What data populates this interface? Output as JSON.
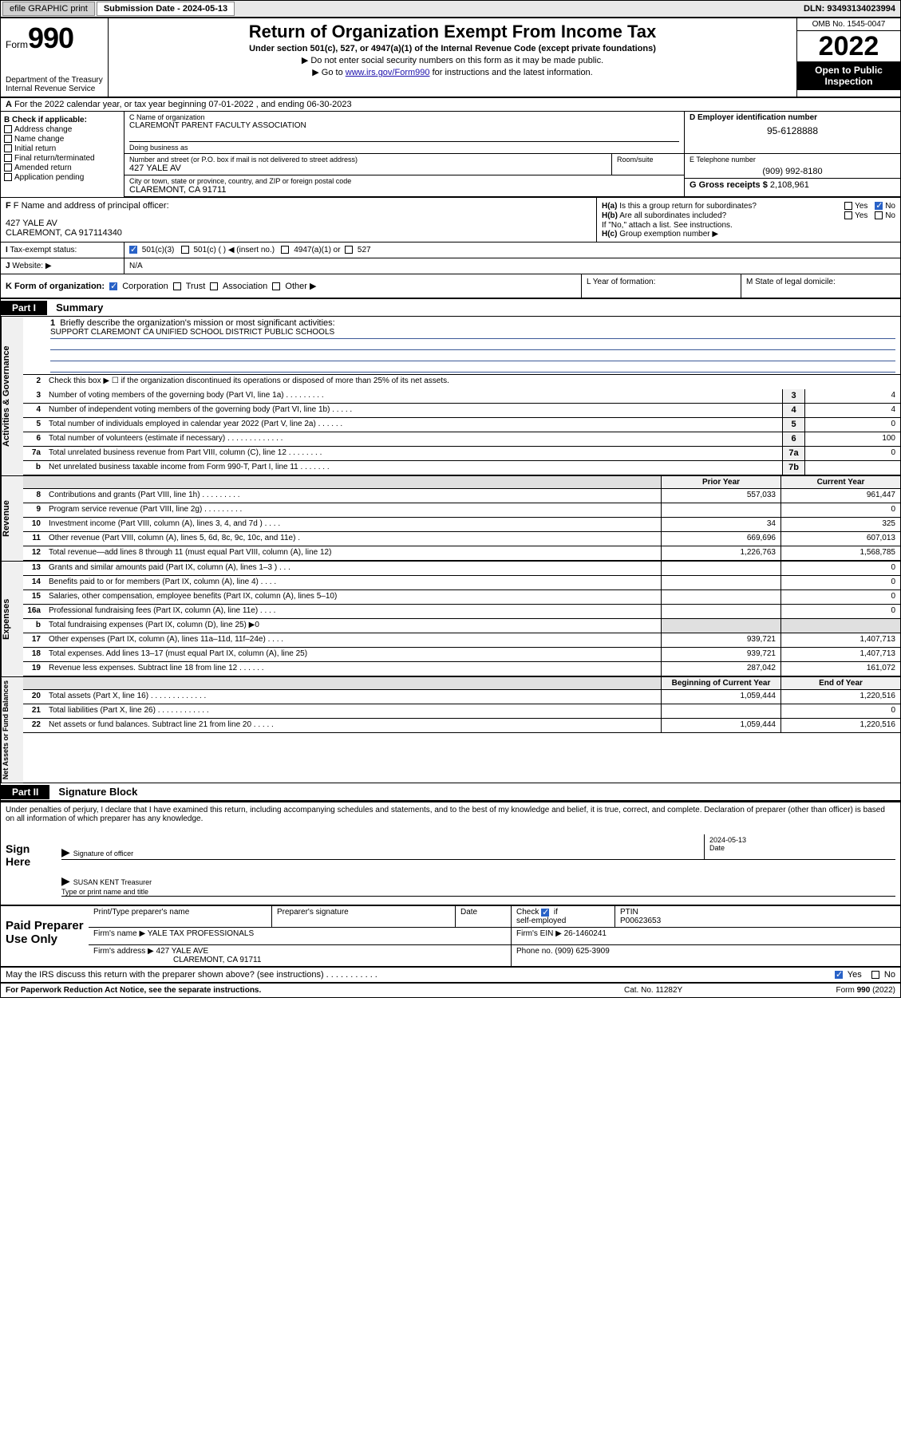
{
  "topbar": {
    "efile": "efile GRAPHIC print",
    "sub_label": "Submission Date - 2024-05-13",
    "dln": "DLN: 93493134023994"
  },
  "header": {
    "form_word": "Form",
    "form_num": "990",
    "dept": "Department of the Treasury",
    "irs": "Internal Revenue Service",
    "title": "Return of Organization Exempt From Income Tax",
    "sub1": "Under section 501(c), 527, or 4947(a)(1) of the Internal Revenue Code (except private foundations)",
    "sub2": "▶ Do not enter social security numbers on this form as it may be made public.",
    "sub3_pre": "▶ Go to ",
    "sub3_link": "www.irs.gov/Form990",
    "sub3_post": " for instructions and the latest information.",
    "omb": "OMB No. 1545-0047",
    "year": "2022",
    "open": "Open to Public Inspection"
  },
  "rowA": "For the 2022 calendar year, or tax year beginning 07-01-2022    , and ending 06-30-2023",
  "colB": {
    "hdr": "B Check if applicable:",
    "items": [
      "Address change",
      "Name change",
      "Initial return",
      "Final return/terminated",
      "Amended return",
      "Application pending"
    ]
  },
  "c": {
    "name_lbl": "C Name of organization",
    "name": "CLAREMONT PARENT FACULTY ASSOCIATION",
    "dba_lbl": "Doing business as",
    "addr_lbl": "Number and street (or P.O. box if mail is not delivered to street address)",
    "room_lbl": "Room/suite",
    "addr": "427 YALE AV",
    "city_lbl": "City or town, state or province, country, and ZIP or foreign postal code",
    "city": "CLAREMONT, CA  91711"
  },
  "d": {
    "lbl": "D Employer identification number",
    "val": "95-6128888"
  },
  "e": {
    "lbl": "E Telephone number",
    "val": "(909) 992-8180"
  },
  "g": {
    "lbl": "G Gross receipts $",
    "val": "2,108,961"
  },
  "f": {
    "lbl": "F Name and address of principal officer:",
    "l1": "427 YALE AV",
    "l2": "CLAREMONT, CA  917114340"
  },
  "h": {
    "a": "Is this a group return for subordinates?",
    "b": "Are all subordinates included?",
    "c_pre": "If \"No,\" attach a list. See instructions.",
    "c_lbl": "Group exemption number ▶"
  },
  "i": {
    "lbl": "Tax-exempt status:",
    "o1": "501(c)(3)",
    "o2": "501(c) (    ) ◀ (insert no.)",
    "o3": "4947(a)(1) or",
    "o4": "527"
  },
  "j": {
    "lbl": "Website: ▶",
    "val": "N/A"
  },
  "k": {
    "lbl": "K Form of organization:",
    "o1": "Corporation",
    "o2": "Trust",
    "o3": "Association",
    "o4": "Other ▶"
  },
  "l": "L Year of formation:",
  "m": "M State of legal domicile:",
  "part1": {
    "hdr": "Part I",
    "title": "Summary"
  },
  "gov": {
    "label": "Activities & Governance",
    "l1": "Briefly describe the organization's mission or most significant activities:",
    "mission": "SUPPORT CLAREMONT CA UNIFIED SCHOOL DISTRICT PUBLIC SCHOOLS",
    "l2": "Check this box ▶ ☐  if the organization discontinued its operations or disposed of more than 25% of its net assets.",
    "lines": [
      {
        "n": "3",
        "t": "Number of voting members of the governing body (Part VI, line 1a)   .   .   .   .   .   .   .   .   .",
        "bn": "3",
        "v": "4"
      },
      {
        "n": "4",
        "t": "Number of independent voting members of the governing body (Part VI, line 1b)   .   .   .   .   .",
        "bn": "4",
        "v": "4"
      },
      {
        "n": "5",
        "t": "Total number of individuals employed in calendar year 2022 (Part V, line 2a)   .   .   .   .   .   .",
        "bn": "5",
        "v": "0"
      },
      {
        "n": "6",
        "t": "Total number of volunteers (estimate if necessary)   .   .   .   .   .   .   .   .   .   .   .   .   .",
        "bn": "6",
        "v": "100"
      },
      {
        "n": "7a",
        "t": "Total unrelated business revenue from Part VIII, column (C), line 12   .   .   .   .   .   .   .   .",
        "bn": "7a",
        "v": "0"
      },
      {
        "n": "b",
        "t": "Net unrelated business taxable income from Form 990-T, Part I, line 11   .   .   .   .   .   .   .",
        "bn": "7b",
        "v": ""
      }
    ]
  },
  "rev": {
    "label": "Revenue",
    "hdr1": "Prior Year",
    "hdr2": "Current Year",
    "lines": [
      {
        "n": "8",
        "t": "Contributions and grants (Part VIII, line 1h)   .   .   .   .   .   .   .   .   .",
        "v1": "557,033",
        "v2": "961,447"
      },
      {
        "n": "9",
        "t": "Program service revenue (Part VIII, line 2g)   .   .   .   .   .   .   .   .   .",
        "v1": "",
        "v2": "0"
      },
      {
        "n": "10",
        "t": "Investment income (Part VIII, column (A), lines 3, 4, and 7d )   .   .   .   .",
        "v1": "34",
        "v2": "325"
      },
      {
        "n": "11",
        "t": "Other revenue (Part VIII, column (A), lines 5, 6d, 8c, 9c, 10c, and 11e)   .",
        "v1": "669,696",
        "v2": "607,013"
      },
      {
        "n": "12",
        "t": "Total revenue—add lines 8 through 11 (must equal Part VIII, column (A), line 12)",
        "v1": "1,226,763",
        "v2": "1,568,785"
      }
    ]
  },
  "exp": {
    "label": "Expenses",
    "lines": [
      {
        "n": "13",
        "t": "Grants and similar amounts paid (Part IX, column (A), lines 1–3 )   .   .   .",
        "v1": "",
        "v2": "0"
      },
      {
        "n": "14",
        "t": "Benefits paid to or for members (Part IX, column (A), line 4)   .   .   .   .",
        "v1": "",
        "v2": "0"
      },
      {
        "n": "15",
        "t": "Salaries, other compensation, employee benefits (Part IX, column (A), lines 5–10)",
        "v1": "",
        "v2": "0"
      },
      {
        "n": "16a",
        "t": "Professional fundraising fees (Part IX, column (A), line 11e)   .   .   .   .",
        "v1": "",
        "v2": "0"
      },
      {
        "n": "b",
        "t": "Total fundraising expenses (Part IX, column (D), line 25) ▶0",
        "v1": "",
        "v2": "",
        "shade": true
      },
      {
        "n": "17",
        "t": "Other expenses (Part IX, column (A), lines 11a–11d, 11f–24e)   .   .   .   .",
        "v1": "939,721",
        "v2": "1,407,713"
      },
      {
        "n": "18",
        "t": "Total expenses. Add lines 13–17 (must equal Part IX, column (A), line 25)",
        "v1": "939,721",
        "v2": "1,407,713"
      },
      {
        "n": "19",
        "t": "Revenue less expenses. Subtract line 18 from line 12   .   .   .   .   .   .",
        "v1": "287,042",
        "v2": "161,072"
      }
    ]
  },
  "na": {
    "label": "Net Assets or Fund Balances",
    "hdr1": "Beginning of Current Year",
    "hdr2": "End of Year",
    "lines": [
      {
        "n": "20",
        "t": "Total assets (Part X, line 16)  .   .   .   .   .   .   .   .   .   .   .   .   .",
        "v1": "1,059,444",
        "v2": "1,220,516"
      },
      {
        "n": "21",
        "t": "Total liabilities (Part X, line 26)  .   .   .   .   .   .   .   .   .   .   .   .",
        "v1": "",
        "v2": "0"
      },
      {
        "n": "22",
        "t": "Net assets or fund balances. Subtract line 21 from line 20   .   .   .   .   .",
        "v1": "1,059,444",
        "v2": "1,220,516"
      }
    ]
  },
  "part2": {
    "hdr": "Part II",
    "title": "Signature Block"
  },
  "decl": "Under penalties of perjury, I declare that I have examined this return, including accompanying schedules and statements, and to the best of my knowledge and belief, it is true, correct, and complete. Declaration of preparer (other than officer) is based on all information of which preparer has any knowledge.",
  "sign": {
    "here": "Sign Here",
    "sig_lbl": "Signature of officer",
    "date_lbl": "Date",
    "date": "2024-05-13",
    "name": "SUSAN KENT Treasurer",
    "name_lbl": "Type or print name and title"
  },
  "prep": {
    "label": "Paid Preparer Use Only",
    "h1": "Print/Type preparer's name",
    "h2": "Preparer's signature",
    "h3": "Date",
    "h4": "Check ☑ if self-employed",
    "ptin_lbl": "PTIN",
    "ptin": "P00623653",
    "firm_lbl": "Firm's name  ▶",
    "firm": "YALE TAX PROFESSIONALS",
    "ein_lbl": "Firm's EIN ▶",
    "ein": "26-1460241",
    "addr_lbl": "Firm's address ▶",
    "addr1": "427 YALE AVE",
    "addr2": "CLAREMONT, CA  91711",
    "phone_lbl": "Phone no.",
    "phone": "(909) 625-3909"
  },
  "may": "May the IRS discuss this return with the preparer shown above? (see instructions)   .   .   .   .   .   .   .   .   .   .   .",
  "foot": {
    "l": "For Paperwork Reduction Act Notice, see the separate instructions.",
    "m": "Cat. No. 11282Y",
    "r": "Form 990 (2022)"
  }
}
